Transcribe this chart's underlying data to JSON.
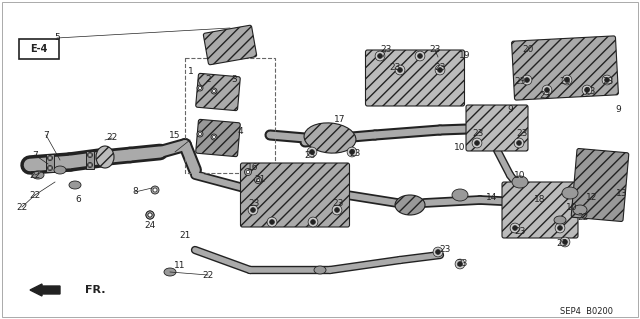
{
  "bg_color": "#ffffff",
  "figsize": [
    6.4,
    3.19
  ],
  "dpi": 100,
  "diagram_ref": "SEP4  B0200"
}
